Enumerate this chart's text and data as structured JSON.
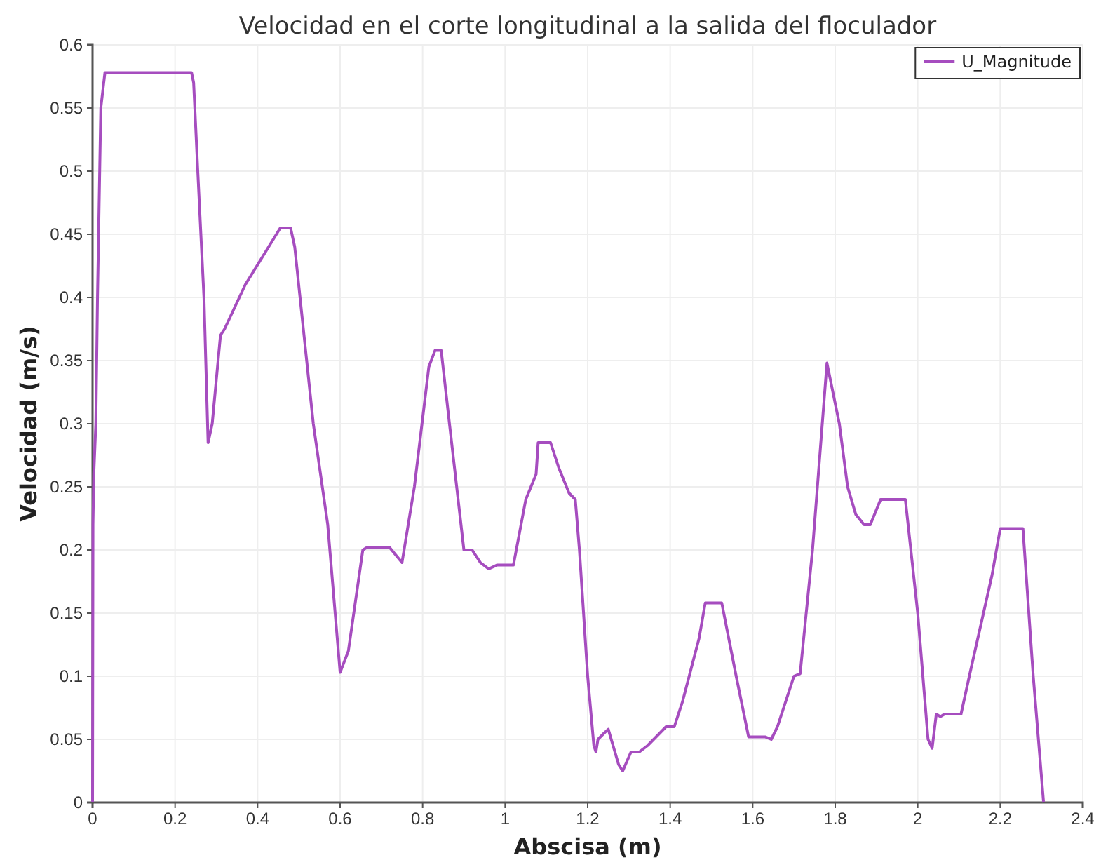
{
  "chart_data": {
    "type": "line",
    "title": "Velocidad en el corte longitudinal a la salida del floculador",
    "xlabel": "Abscisa (m)",
    "ylabel": "Velocidad (m/s)",
    "xlim": [
      0,
      2.4
    ],
    "ylim": [
      0,
      0.6
    ],
    "xticks": [
      0,
      0.2,
      0.4,
      0.6,
      0.8,
      1,
      1.2,
      1.4,
      1.6,
      1.8,
      2,
      2.2,
      2.4
    ],
    "yticks": [
      0,
      0.05,
      0.1,
      0.15,
      0.2,
      0.25,
      0.3,
      0.35,
      0.4,
      0.45,
      0.5,
      0.55,
      0.6
    ],
    "grid": true,
    "legend": "top right",
    "marker": "none",
    "line_style": "solid",
    "series": [
      {
        "name": "U_Magnitude",
        "color": "#a64dbf",
        "x": [
          0,
          0.001,
          0.003,
          0.008,
          0.012,
          0.02,
          0.03,
          0.24,
          0.245,
          0.255,
          0.27,
          0.28,
          0.29,
          0.31,
          0.32,
          0.37,
          0.455,
          0.48,
          0.49,
          0.535,
          0.57,
          0.6,
          0.62,
          0.655,
          0.665,
          0.72,
          0.75,
          0.78,
          0.815,
          0.83,
          0.845,
          0.865,
          0.9,
          0.92,
          0.94,
          0.96,
          0.98,
          1.02,
          1.05,
          1.075,
          1.08,
          1.11,
          1.13,
          1.155,
          1.17,
          1.18,
          1.2,
          1.215,
          1.22,
          1.225,
          1.24,
          1.25,
          1.275,
          1.285,
          1.305,
          1.325,
          1.345,
          1.375,
          1.39,
          1.41,
          1.43,
          1.47,
          1.485,
          1.525,
          1.56,
          1.59,
          1.63,
          1.645,
          1.66,
          1.7,
          1.715,
          1.745,
          1.78,
          1.81,
          1.83,
          1.85,
          1.87,
          1.885,
          1.9,
          1.91,
          1.97,
          2.0,
          2.025,
          2.035,
          2.045,
          2.055,
          2.065,
          2.105,
          2.125,
          2.18,
          2.2,
          2.255,
          2.28,
          2.305
        ],
        "values": [
          0,
          0.22,
          0.26,
          0.3,
          0.4,
          0.55,
          0.578,
          0.578,
          0.57,
          0.5,
          0.4,
          0.285,
          0.3,
          0.37,
          0.375,
          0.41,
          0.455,
          0.455,
          0.44,
          0.3,
          0.22,
          0.103,
          0.12,
          0.2,
          0.202,
          0.202,
          0.19,
          0.25,
          0.345,
          0.358,
          0.358,
          0.3,
          0.2,
          0.2,
          0.19,
          0.185,
          0.188,
          0.188,
          0.24,
          0.26,
          0.285,
          0.285,
          0.265,
          0.245,
          0.24,
          0.2,
          0.1,
          0.045,
          0.04,
          0.05,
          0.055,
          0.058,
          0.03,
          0.025,
          0.04,
          0.04,
          0.045,
          0.055,
          0.06,
          0.06,
          0.08,
          0.13,
          0.158,
          0.158,
          0.1,
          0.052,
          0.052,
          0.05,
          0.06,
          0.1,
          0.102,
          0.2,
          0.348,
          0.3,
          0.25,
          0.228,
          0.22,
          0.22,
          0.232,
          0.24,
          0.24,
          0.15,
          0.05,
          0.043,
          0.07,
          0.068,
          0.07,
          0.07,
          0.1,
          0.18,
          0.217,
          0.217,
          0.1,
          0
        ]
      }
    ]
  }
}
